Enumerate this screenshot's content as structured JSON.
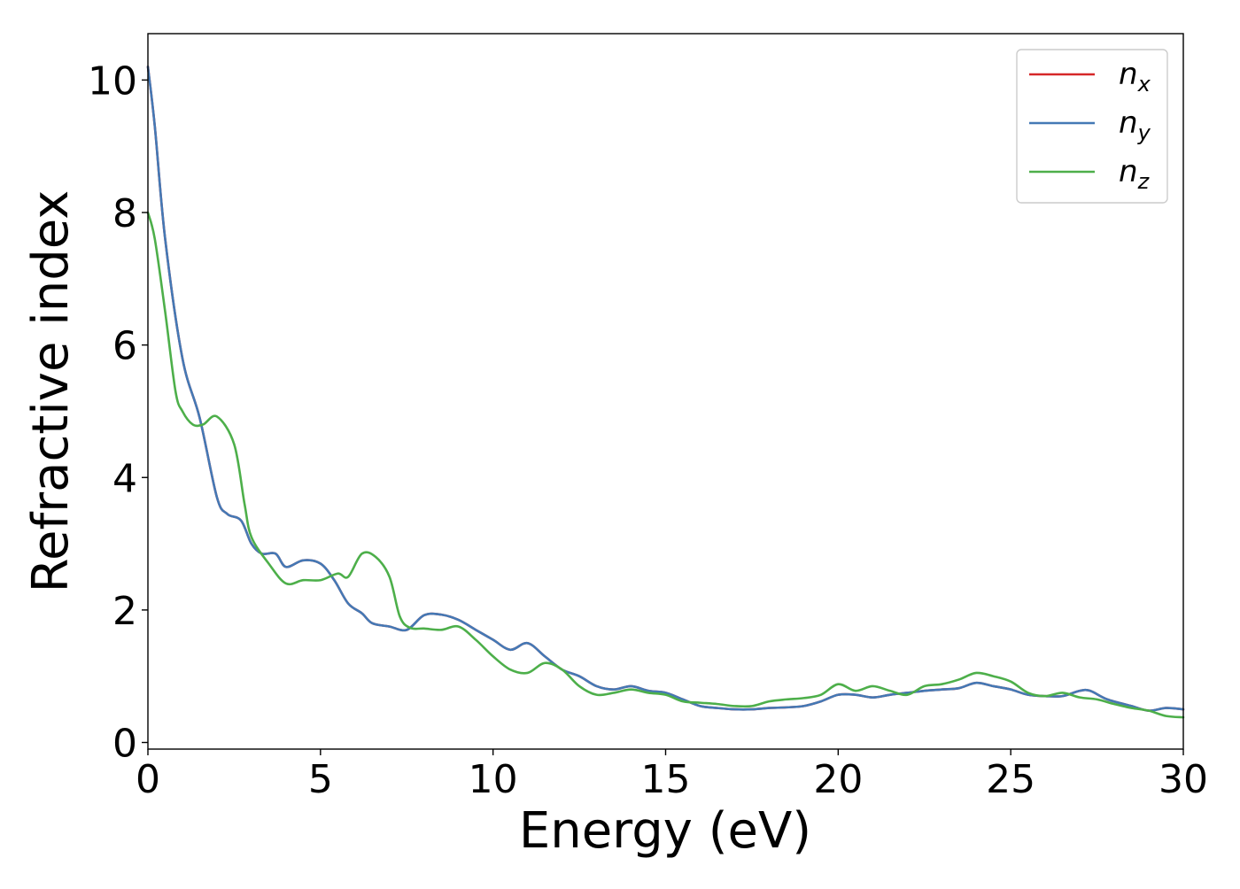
{
  "chart_data": {
    "type": "line",
    "title": "",
    "xlabel": "Energy (eV)",
    "ylabel": "Refractive index",
    "xlim": [
      0,
      30
    ],
    "ylim": [
      -0.1,
      10.7
    ],
    "xticks": [
      0,
      5,
      10,
      15,
      20,
      25,
      30
    ],
    "yticks": [
      0,
      2,
      4,
      6,
      8,
      10
    ],
    "grid": false,
    "legend_position": "top-right",
    "series": [
      {
        "name": "n_x",
        "label_main": "n",
        "label_sub": "x",
        "color": "#d62728",
        "x": [
          0,
          0.2,
          0.5,
          1.0,
          1.5,
          2.0,
          2.3,
          2.7,
          3.0,
          3.3,
          3.7,
          4.0,
          4.5,
          5.0,
          5.4,
          5.8,
          6.2,
          6.5,
          7.0,
          7.5,
          8.0,
          8.5,
          9.0,
          9.5,
          10.0,
          10.5,
          11.0,
          11.5,
          12.0,
          12.5,
          13.0,
          13.5,
          14.0,
          14.5,
          15.0,
          15.5,
          16.0,
          16.5,
          17.0,
          17.5,
          18.0,
          18.5,
          19.0,
          19.5,
          20.0,
          20.5,
          21.0,
          21.5,
          22.0,
          22.5,
          23.0,
          23.5,
          24.0,
          24.5,
          25.0,
          25.5,
          26.0,
          26.5,
          27.0,
          27.3,
          27.8,
          28.5,
          29.0,
          29.5,
          30.0
        ],
        "y": [
          10.2,
          9.3,
          7.6,
          5.8,
          4.9,
          3.7,
          3.45,
          3.35,
          3.0,
          2.85,
          2.85,
          2.65,
          2.75,
          2.7,
          2.45,
          2.1,
          1.95,
          1.8,
          1.75,
          1.7,
          1.92,
          1.93,
          1.85,
          1.7,
          1.55,
          1.4,
          1.5,
          1.3,
          1.1,
          1.0,
          0.85,
          0.8,
          0.85,
          0.78,
          0.75,
          0.65,
          0.55,
          0.52,
          0.5,
          0.5,
          0.52,
          0.53,
          0.55,
          0.62,
          0.72,
          0.72,
          0.68,
          0.72,
          0.75,
          0.78,
          0.8,
          0.82,
          0.9,
          0.85,
          0.8,
          0.72,
          0.7,
          0.7,
          0.78,
          0.78,
          0.65,
          0.55,
          0.48,
          0.52,
          0.5
        ]
      },
      {
        "name": "n_y",
        "label_main": "n",
        "label_sub": "y",
        "color": "#4479b5",
        "x": [
          0,
          0.2,
          0.5,
          1.0,
          1.5,
          2.0,
          2.3,
          2.7,
          3.0,
          3.3,
          3.7,
          4.0,
          4.5,
          5.0,
          5.4,
          5.8,
          6.2,
          6.5,
          7.0,
          7.5,
          8.0,
          8.5,
          9.0,
          9.5,
          10.0,
          10.5,
          11.0,
          11.5,
          12.0,
          12.5,
          13.0,
          13.5,
          14.0,
          14.5,
          15.0,
          15.5,
          16.0,
          16.5,
          17.0,
          17.5,
          18.0,
          18.5,
          19.0,
          19.5,
          20.0,
          20.5,
          21.0,
          21.5,
          22.0,
          22.5,
          23.0,
          23.5,
          24.0,
          24.5,
          25.0,
          25.5,
          26.0,
          26.5,
          27.0,
          27.3,
          27.8,
          28.5,
          29.0,
          29.5,
          30.0
        ],
        "y": [
          10.2,
          9.3,
          7.6,
          5.8,
          4.9,
          3.7,
          3.45,
          3.35,
          3.0,
          2.85,
          2.85,
          2.65,
          2.75,
          2.7,
          2.45,
          2.1,
          1.95,
          1.8,
          1.75,
          1.7,
          1.92,
          1.93,
          1.85,
          1.7,
          1.55,
          1.4,
          1.5,
          1.3,
          1.1,
          1.0,
          0.85,
          0.8,
          0.85,
          0.78,
          0.75,
          0.65,
          0.55,
          0.52,
          0.5,
          0.5,
          0.52,
          0.53,
          0.55,
          0.62,
          0.72,
          0.72,
          0.68,
          0.72,
          0.75,
          0.78,
          0.8,
          0.82,
          0.9,
          0.85,
          0.8,
          0.72,
          0.7,
          0.7,
          0.78,
          0.78,
          0.65,
          0.55,
          0.48,
          0.52,
          0.5
        ]
      },
      {
        "name": "n_z",
        "label_main": "n",
        "label_sub": "z",
        "color": "#4daf4a",
        "x": [
          0,
          0.2,
          0.5,
          0.8,
          1.0,
          1.3,
          1.6,
          2.0,
          2.5,
          2.8,
          3.0,
          3.5,
          4.0,
          4.5,
          5.0,
          5.5,
          5.8,
          6.2,
          6.6,
          7.0,
          7.3,
          7.6,
          8.0,
          8.5,
          9.0,
          9.5,
          10.0,
          10.5,
          11.0,
          11.5,
          12.0,
          12.5,
          13.0,
          13.5,
          14.0,
          14.5,
          15.0,
          15.5,
          16.0,
          16.5,
          17.0,
          17.5,
          18.0,
          18.5,
          19.0,
          19.5,
          20.0,
          20.5,
          21.0,
          21.5,
          22.0,
          22.5,
          23.0,
          23.5,
          24.0,
          24.5,
          25.0,
          25.5,
          26.0,
          26.5,
          27.0,
          27.5,
          28.0,
          28.5,
          29.0,
          29.5,
          30.0
        ],
        "y": [
          8.0,
          7.6,
          6.5,
          5.3,
          5.0,
          4.8,
          4.8,
          4.92,
          4.5,
          3.6,
          3.1,
          2.7,
          2.4,
          2.45,
          2.45,
          2.55,
          2.5,
          2.85,
          2.8,
          2.5,
          1.9,
          1.73,
          1.72,
          1.7,
          1.75,
          1.55,
          1.3,
          1.1,
          1.05,
          1.2,
          1.1,
          0.85,
          0.72,
          0.75,
          0.8,
          0.75,
          0.72,
          0.62,
          0.6,
          0.58,
          0.55,
          0.55,
          0.62,
          0.65,
          0.67,
          0.72,
          0.88,
          0.78,
          0.85,
          0.78,
          0.72,
          0.85,
          0.88,
          0.95,
          1.05,
          1.0,
          0.92,
          0.75,
          0.7,
          0.75,
          0.68,
          0.65,
          0.58,
          0.52,
          0.48,
          0.4,
          0.38
        ]
      }
    ]
  }
}
